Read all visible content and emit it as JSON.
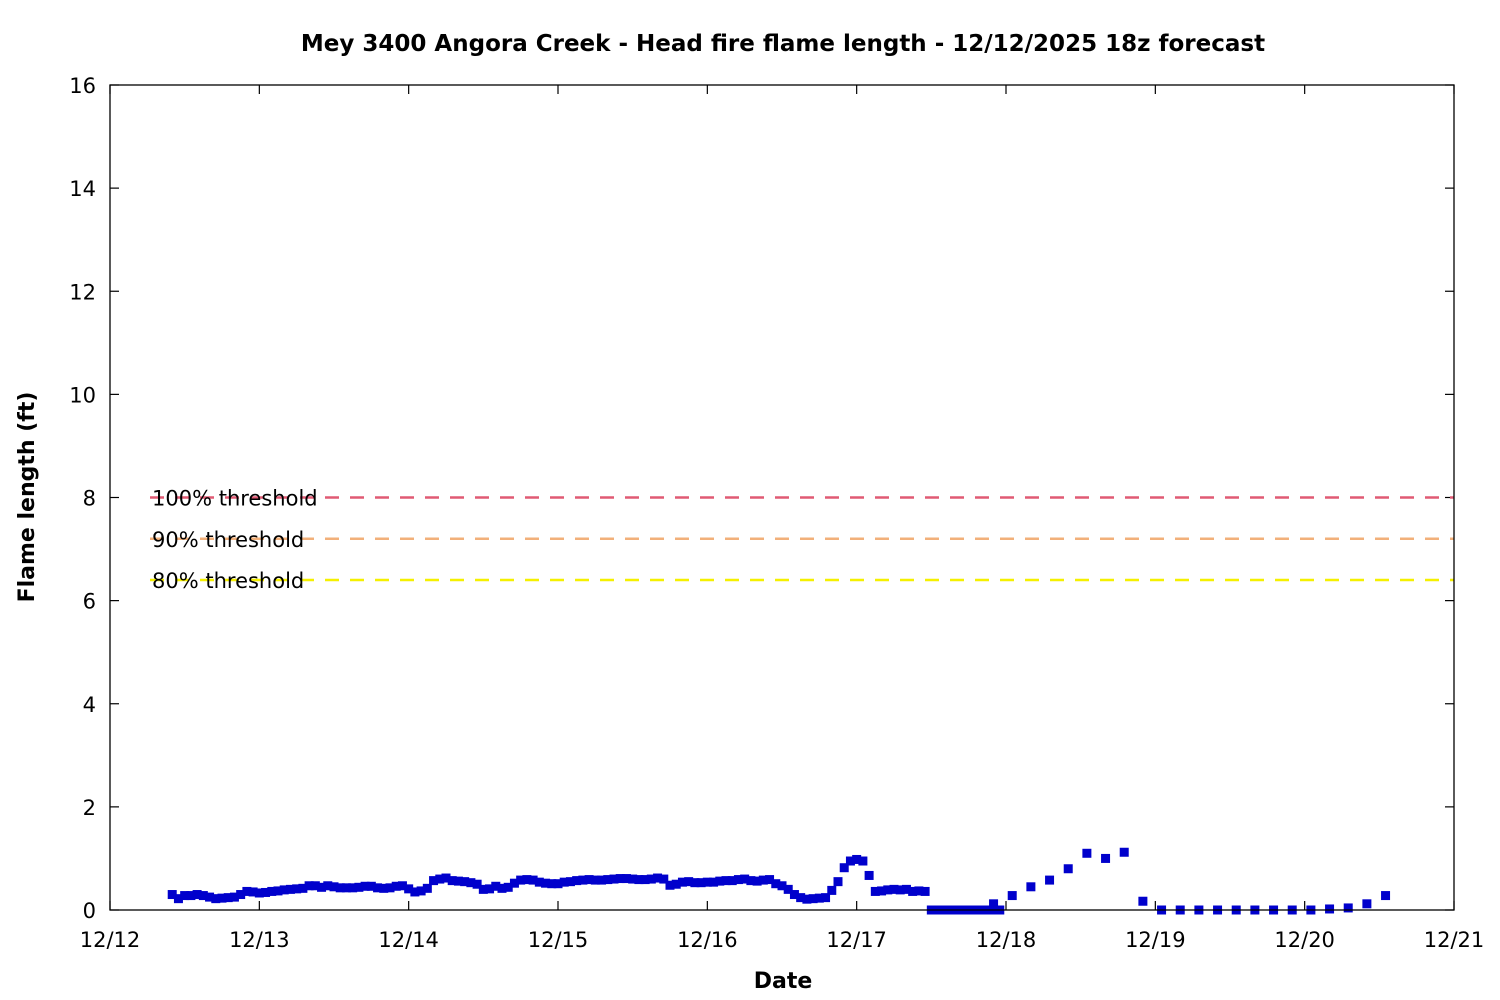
{
  "chart_data": {
    "type": "scatter",
    "title": "Mey 3400 Angora Creek - Head fire flame length - 12/12/2025 18z forecast",
    "xlabel": "Date",
    "ylabel": "Flame length (ft)",
    "xlim": [
      "12/12",
      "12/21"
    ],
    "ylim": [
      0,
      16
    ],
    "x_ticks": [
      "12/12",
      "12/13",
      "12/14",
      "12/15",
      "12/16",
      "12/17",
      "12/18",
      "12/19",
      "12/20",
      "12/21"
    ],
    "y_ticks": [
      "0",
      "2",
      "4",
      "6",
      "8",
      "10",
      "12",
      "14",
      "16"
    ],
    "grid": false,
    "thresholds": [
      {
        "label": "100% threshold",
        "value": 8.0,
        "color": "#e05a74"
      },
      {
        "label": "90% threshold",
        "value": 7.2,
        "color": "#f2b07a"
      },
      {
        "label": "80% threshold",
        "value": 6.4,
        "color": "#f5f000"
      }
    ],
    "series": [
      {
        "color": "#0000cc",
        "marker": "square",
        "x_start": "12/12 10:00",
        "points_hourly": [
          0.3,
          0.22,
          0.28,
          0.28,
          0.3,
          0.28,
          0.25,
          0.22,
          0.23,
          0.24,
          0.25,
          0.3,
          0.36,
          0.35,
          0.33,
          0.34,
          0.36,
          0.37,
          0.39,
          0.4,
          0.41,
          0.42,
          0.47,
          0.47,
          0.44,
          0.47,
          0.45,
          0.43,
          0.43,
          0.43,
          0.44,
          0.46,
          0.46,
          0.43,
          0.42,
          0.43,
          0.46,
          0.47,
          0.41,
          0.35,
          0.37,
          0.42,
          0.57,
          0.6,
          0.62,
          0.57,
          0.56,
          0.55,
          0.53,
          0.5,
          0.4,
          0.41,
          0.46,
          0.42,
          0.44,
          0.52,
          0.58,
          0.59,
          0.58,
          0.54,
          0.52,
          0.51,
          0.51,
          0.54,
          0.55,
          0.57,
          0.58,
          0.59,
          0.58,
          0.58,
          0.59,
          0.6,
          0.61,
          0.61,
          0.6,
          0.59,
          0.59,
          0.6,
          0.62,
          0.6,
          0.48,
          0.5,
          0.54,
          0.55,
          0.53,
          0.53,
          0.54,
          0.54,
          0.56,
          0.57,
          0.57,
          0.59,
          0.6,
          0.57,
          0.56,
          0.58,
          0.59,
          0.51,
          0.47,
          0.4,
          0.3,
          0.24,
          0.21,
          0.22,
          0.23,
          0.24,
          0.38,
          0.55,
          0.82,
          0.95,
          0.98,
          0.95,
          0.67,
          0.36,
          0.37,
          0.39,
          0.4,
          0.39,
          0.4,
          0.36,
          0.37,
          0.36,
          0.0,
          0.0,
          0.0,
          0.0,
          0.0,
          0.0,
          0.0,
          0.0,
          0.0,
          0.0,
          0.0,
          0.0
        ],
        "points_sparse": [
          {
            "x": "12/17 16:00",
            "y": 0.0
          },
          {
            "x": "12/17 19:00",
            "y": 0.0
          },
          {
            "x": "12/17 22:00",
            "y": 0.12
          },
          {
            "x": "12/18 01:00",
            "y": 0.28
          },
          {
            "x": "12/18 04:00",
            "y": 0.45
          },
          {
            "x": "12/18 07:00",
            "y": 0.58
          },
          {
            "x": "12/18 10:00",
            "y": 0.8
          },
          {
            "x": "12/18 13:00",
            "y": 1.1
          },
          {
            "x": "12/18 16:00",
            "y": 1.0
          },
          {
            "x": "12/18 19:00",
            "y": 1.12
          },
          {
            "x": "12/18 22:00",
            "y": 0.17
          },
          {
            "x": "12/19 01:00",
            "y": 0.0
          },
          {
            "x": "12/19 04:00",
            "y": 0.0
          },
          {
            "x": "12/19 07:00",
            "y": 0.0
          },
          {
            "x": "12/19 10:00",
            "y": 0.0
          },
          {
            "x": "12/19 13:00",
            "y": 0.0
          },
          {
            "x": "12/19 16:00",
            "y": 0.0
          },
          {
            "x": "12/19 19:00",
            "y": 0.0
          },
          {
            "x": "12/19 22:00",
            "y": 0.0
          },
          {
            "x": "12/20 01:00",
            "y": 0.0
          },
          {
            "x": "12/20 04:00",
            "y": 0.02
          },
          {
            "x": "12/20 07:00",
            "y": 0.04
          },
          {
            "x": "12/20 10:00",
            "y": 0.12
          },
          {
            "x": "12/20 13:00",
            "y": 0.28
          }
        ]
      }
    ]
  }
}
